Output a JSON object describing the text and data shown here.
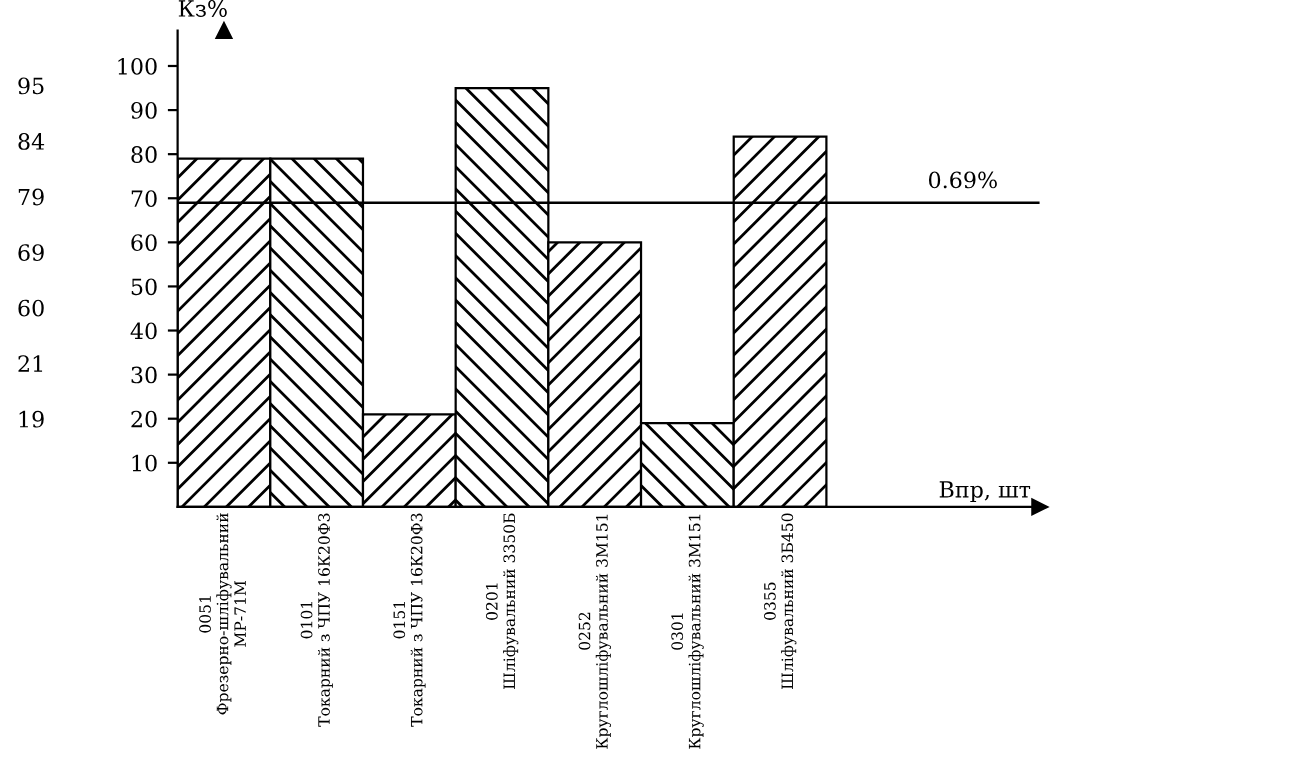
{
  "chart_data": {
    "type": "bar",
    "categories": [
      "0051\nФрезерно-шліфувальний\nМР-71М",
      "0101\nТокарний з ЧПУ 16К20Ф3",
      "0151\nТокарний з ЧПУ 16К20Ф3",
      "0201\nШліфувальний 3350Б",
      "0252\nКруглошліфувальний 3М151",
      "0301\nКруглошліфувальний 3М151",
      "0355\nШліфувальний 3Б450"
    ],
    "values": [
      79,
      79,
      21,
      95,
      60,
      19,
      84
    ],
    "color": "#000000",
    "ylabel": "Кз%",
    "ylim": [
      0,
      108
    ],
    "yticks": [
      10,
      20,
      30,
      40,
      50,
      60,
      70,
      80,
      90,
      100
    ],
    "ref_lines": [
      {
        "axis": "y",
        "value": 69,
        "color": "#000000"
      }
    ],
    "annotations": [
      "95",
      "84",
      "79",
      "69",
      "60",
      "21",
      "19",
      "0.69%",
      "Впр, шт"
    ],
    "grid": false,
    "legend": false
  }
}
